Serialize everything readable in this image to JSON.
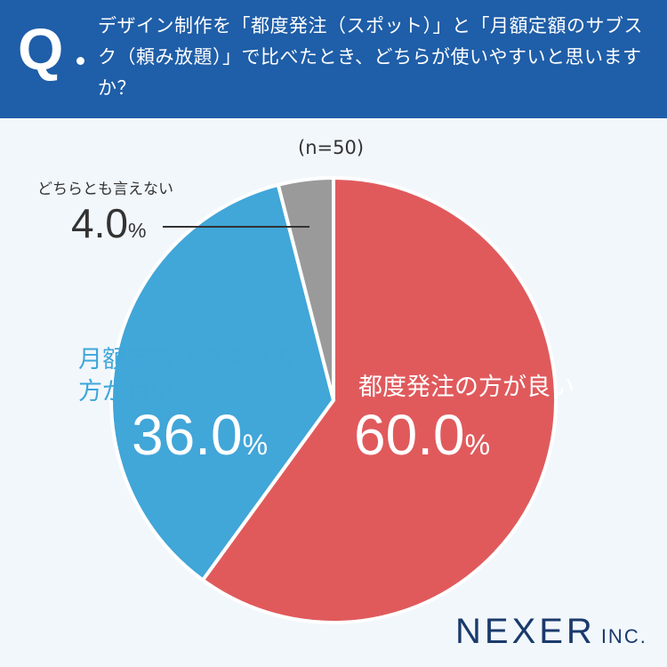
{
  "question": {
    "mark": "Q",
    "text": "デザイン制作を「都度発注（スポット）」と「月額定額のサブスク（頼み放題）」で比べたとき、どちらが使いやすいと思いますか？"
  },
  "sample": "(n=50)",
  "chart_data": {
    "type": "pie",
    "unit": "%",
    "slices": [
      {
        "label": "都度発注の方が良い",
        "value": 60.0,
        "display": "60.0",
        "color": "#e05a5c"
      },
      {
        "label": "月額定額サブスクの方が良い",
        "value": 36.0,
        "display": "36.0",
        "color": "#41a6d8"
      },
      {
        "label": "どちらとも言えない",
        "value": 4.0,
        "display": "4.0",
        "color": "#9a9a9a"
      }
    ]
  },
  "labels": {
    "spot_name": "都度発注の方が良い",
    "sub_name_line1": "月額定額サブスクの",
    "sub_name_line2": "方が良い",
    "neither_name": "どちらとも言えない",
    "spot_value": "60.0",
    "sub_value": "36.0",
    "neither_value": "4.0",
    "unit": "%"
  },
  "brand": {
    "name": "NEXER",
    "suffix": "INC."
  }
}
